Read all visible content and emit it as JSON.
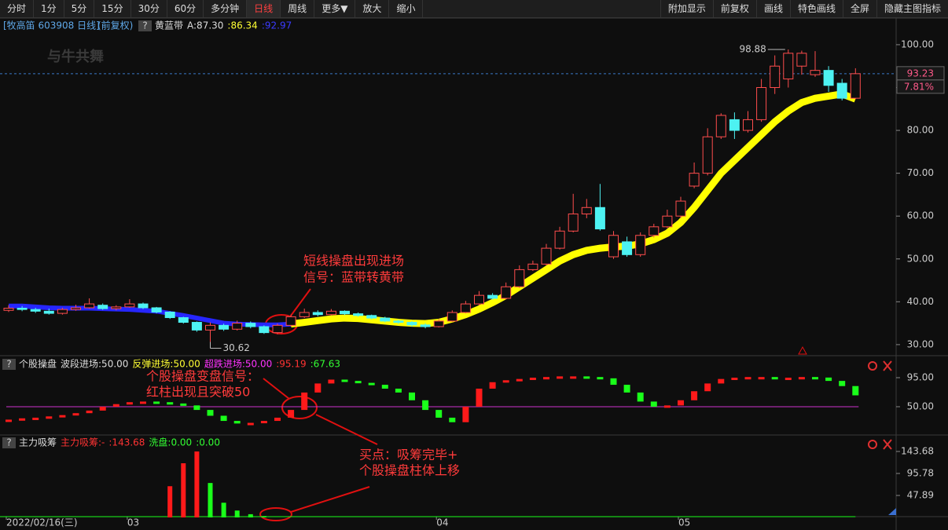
{
  "toolbar": {
    "left": [
      "分时",
      "1分",
      "5分",
      "15分",
      "30分",
      "60分",
      "多分钟",
      "日线",
      "周线",
      "更多▼",
      "放大",
      "缩小"
    ],
    "right": [
      "附加显示",
      "前复权",
      "画线",
      "特色画线",
      "全屏",
      "隐藏主图指标"
    ],
    "active": 7
  },
  "header": {
    "security": "[牧高笛 603908 日线]",
    "adjust": "(前复权)",
    "help": "?",
    "logo": "与牛共舞"
  },
  "annotations": {
    "main": [
      "短线操盘出现进场",
      "信号：蓝带转黄带"
    ],
    "signal": [
      "个股操盘变盘信号：",
      "红柱出现且突破50"
    ],
    "buy": [
      "买点：吸筹完毕+",
      "个股操盘柱体上移"
    ]
  },
  "chart_data": [
    {
      "type": "candlestick",
      "legend": [
        {
          "text": "黄蓝带",
          "color": "#dddddd"
        },
        {
          "text": "A:87.30",
          "color": "#dddddd"
        },
        {
          "text": ":86.34",
          "color": "#ffff33"
        },
        {
          "text": ":92.97",
          "color": "#3b3bff"
        }
      ],
      "categories": [
        "2022/02/16(三)",
        null,
        null,
        null,
        null,
        null,
        null,
        null,
        null,
        "03",
        null,
        null,
        null,
        null,
        null,
        null,
        null,
        null,
        null,
        null,
        null,
        null,
        null,
        null,
        null,
        null,
        null,
        null,
        null,
        null,
        null,
        null,
        "04",
        null,
        null,
        null,
        null,
        null,
        null,
        null,
        null,
        null,
        null,
        null,
        null,
        null,
        null,
        null,
        null,
        null,
        "05",
        null,
        null,
        null,
        null,
        null,
        null,
        null,
        null,
        null,
        null,
        null,
        null,
        null
      ],
      "open": [
        38,
        38.5,
        38.2,
        37.8,
        37.3,
        38.2,
        38.6,
        39.2,
        38.4,
        38.8,
        39.5,
        38.6,
        37.6,
        36.3,
        35.2,
        33.4,
        34.5,
        33.6,
        35,
        34.2,
        32.8,
        34.5,
        36.5,
        37.5,
        37,
        37.8,
        37.2,
        36.8,
        36.2,
        35.5,
        35.2,
        34.6,
        34.2,
        35.5,
        37.5,
        39.5,
        41.5,
        40.8,
        43.5,
        47.5,
        48.8,
        52.5,
        56.5,
        60.5,
        62,
        50.5,
        54,
        51,
        55.5,
        57.5,
        60,
        67,
        70,
        78.5,
        82.5,
        80,
        82.5,
        90,
        92,
        95,
        93,
        94,
        91,
        87.5
      ],
      "close": [
        38.5,
        38.2,
        37.8,
        37.3,
        38.2,
        38.6,
        39.5,
        38.4,
        38.8,
        39.5,
        38.6,
        37.6,
        36.3,
        35.2,
        33.4,
        34.5,
        33.6,
        35,
        34.2,
        32.8,
        34.5,
        36.5,
        37.5,
        37,
        37.8,
        37.2,
        36.8,
        36.2,
        35.5,
        35.2,
        34.6,
        34.2,
        35.5,
        37.5,
        39.5,
        41.5,
        40.8,
        43.5,
        47.5,
        48.8,
        52.5,
        56.5,
        60.5,
        62,
        57,
        55.5,
        51,
        55.5,
        57.5,
        60,
        63.5,
        70,
        78.5,
        83.5,
        80,
        82.5,
        90,
        95,
        98,
        98,
        94,
        90.5,
        87.5,
        93.23
      ],
      "high": [
        39.2,
        39,
        38.6,
        38.4,
        38.6,
        39.3,
        40.8,
        39.6,
        39.2,
        40.6,
        39.8,
        38.8,
        37.8,
        36.5,
        35.4,
        35.2,
        34.9,
        35.6,
        35.4,
        34.5,
        34.9,
        37,
        38.4,
        38,
        38.3,
        38,
        37.5,
        37,
        36.5,
        35.8,
        35.5,
        35,
        36,
        38,
        40.2,
        42.5,
        42,
        44.5,
        48.5,
        49.6,
        53.5,
        57.5,
        65.2,
        64,
        67.5,
        56.5,
        55.2,
        56.2,
        58.2,
        61.5,
        64.5,
        72.5,
        80.5,
        84,
        84.2,
        84.5,
        92,
        97.5,
        98.88,
        98.6,
        98.5,
        95,
        92,
        94.5
      ],
      "low": [
        37.6,
        37.8,
        37.4,
        37,
        37,
        37.9,
        38.4,
        38.1,
        38,
        38.6,
        38.3,
        37.3,
        36,
        34.9,
        33,
        30.62,
        33.2,
        33.3,
        33.8,
        32.5,
        32.4,
        34.2,
        36.2,
        36.6,
        36.8,
        36.9,
        36.5,
        35.9,
        35.2,
        34.8,
        34.2,
        33.8,
        34,
        35.3,
        37.3,
        39.2,
        40.5,
        40.6,
        43.2,
        47.2,
        48.5,
        52.2,
        56.2,
        59.5,
        56.6,
        50,
        50.5,
        50.5,
        55,
        57.2,
        59.5,
        66.5,
        69.5,
        78,
        78,
        79.5,
        82,
        88.5,
        90,
        93,
        92.5,
        89,
        87,
        87.3
      ],
      "up_color": "#ff4d4d",
      "down_color": "#4df2f2",
      "bands": [
        {
          "color": "#2626ff",
          "values": [
            39,
            39,
            38.8,
            38.6,
            38.5,
            38.5,
            38.5,
            38.4,
            38.3,
            38.2,
            38,
            37.8,
            37.3,
            36.8,
            36.2,
            35.6,
            35,
            34.8,
            34.7,
            34.6,
            34.6,
            34.8,
            null,
            null,
            null,
            null,
            null,
            null,
            null,
            null,
            null,
            null,
            null,
            null,
            null,
            null,
            null,
            null,
            null,
            null,
            null,
            null,
            null,
            null,
            null,
            null,
            null,
            null,
            null,
            null,
            null,
            null,
            null,
            null,
            null,
            null,
            null,
            null,
            null,
            null,
            null,
            null,
            null,
            null
          ]
        },
        {
          "color": "#ffff00",
          "values": [
            null,
            null,
            null,
            null,
            null,
            null,
            null,
            null,
            null,
            null,
            null,
            null,
            null,
            null,
            null,
            null,
            null,
            null,
            null,
            null,
            null,
            34.8,
            35.2,
            35.6,
            36,
            36.2,
            36.1,
            35.8,
            35.5,
            35.2,
            35,
            34.9,
            35.2,
            36,
            37,
            38.3,
            39.8,
            41.5,
            43.5,
            45.5,
            47.5,
            49.5,
            51,
            52,
            52.5,
            52.8,
            53,
            53.5,
            54.5,
            56,
            58.5,
            62,
            66,
            70,
            73,
            76,
            79,
            82,
            84.5,
            86.5,
            87.5,
            88,
            88.5,
            87.3
          ]
        }
      ],
      "ylim": [
        27.6,
        103.1
      ],
      "yticks": [
        {
          "value": 100,
          "label": "100.00"
        },
        {
          "value": 90,
          "label": "90.00"
        },
        {
          "value": 80,
          "label": "80.00"
        },
        {
          "value": 70,
          "label": "70.00"
        },
        {
          "value": 60,
          "label": "60.00"
        },
        {
          "value": 50,
          "label": "50.00"
        },
        {
          "value": 40,
          "label": "40.00"
        },
        {
          "value": 30,
          "label": "30.00"
        }
      ],
      "last_price": {
        "value": 93.23,
        "label": "93.23"
      },
      "change": "7.81%",
      "high_label": "98.88",
      "low_label": "30.62"
    },
    {
      "type": "step-bar",
      "legend": [
        {
          "text": "个股操盘",
          "color": "#dddddd"
        },
        {
          "text": "波段进场:50.00",
          "color": "#dddddd"
        },
        {
          "text": "反弹进场:50.00",
          "color": "#ffff33"
        },
        {
          "text": "超跌进场:50.00",
          "color": "#ff33ff"
        },
        {
          "text": ":95.19",
          "color": "#ff3333"
        },
        {
          "text": ":67.63",
          "color": "#33ff33"
        }
      ],
      "values": [
        30,
        32,
        33,
        35,
        37,
        40,
        44,
        50,
        54,
        57,
        58,
        57,
        55,
        52,
        45,
        36,
        28,
        24,
        25,
        28,
        33,
        45,
        72,
        86,
        92,
        90,
        87,
        84,
        78,
        72,
        60,
        45,
        33,
        26,
        50,
        78,
        88,
        91,
        93,
        95,
        96,
        97,
        97,
        96,
        94,
        84,
        72,
        58,
        50,
        52,
        60,
        74,
        86,
        93,
        95,
        96,
        96,
        95,
        95,
        96,
        95.19,
        90,
        82,
        67.63
      ],
      "up_color": "#ff1a1a",
      "down_color": "#1aff1a",
      "hline": 50,
      "hline_color": "#cc33cc",
      "ylim": [
        8.6,
        108.4
      ],
      "yticks": [
        {
          "value": 95,
          "label": "95.00"
        },
        {
          "value": 50,
          "label": "50.00"
        }
      ]
    },
    {
      "type": "bar",
      "legend": [
        {
          "text": "主力吸筹",
          "color": "#dddddd"
        },
        {
          "text": "主力吸筹:-",
          "color": "#ff3333"
        },
        {
          "text": ":143.68",
          "color": "#ff3333"
        },
        {
          "text": "洗盘:0.00",
          "color": "#33ff33"
        },
        {
          "text": ":0.00",
          "color": "#33ff33"
        }
      ],
      "series": [
        {
          "color": "#ff1a1a",
          "values": [
            0,
            0,
            0,
            0,
            0,
            0,
            0,
            0,
            0,
            0,
            0,
            0,
            68,
            118,
            143.68,
            0,
            0,
            0,
            0,
            0,
            0,
            0,
            0,
            0,
            0,
            0,
            0,
            0,
            0,
            0,
            0,
            0,
            0,
            0,
            0,
            0,
            0,
            0,
            0,
            0,
            0,
            0,
            0,
            0,
            0,
            0,
            0,
            0,
            0,
            0,
            0,
            0,
            0,
            0,
            0,
            0,
            0,
            0,
            0,
            0,
            0,
            0,
            0,
            0
          ]
        },
        {
          "color": "#1aff1a",
          "values": [
            0,
            0,
            0,
            0,
            0,
            0,
            0,
            0,
            0,
            0,
            0,
            0,
            0,
            0,
            0,
            75,
            32,
            15,
            7,
            3,
            0,
            0,
            0,
            0,
            0,
            0,
            0,
            0,
            0,
            0,
            0,
            0,
            0,
            0,
            0,
            0,
            0,
            0,
            0,
            0,
            0,
            0,
            0,
            0,
            0,
            0,
            0,
            0,
            0,
            0,
            0,
            0,
            0,
            0,
            0,
            0,
            0,
            0,
            0,
            0,
            0,
            0,
            0,
            0
          ]
        }
      ],
      "ylim": [
        0,
        152.2
      ],
      "yticks": [
        143.68,
        95.78,
        47.89
      ]
    }
  ]
}
